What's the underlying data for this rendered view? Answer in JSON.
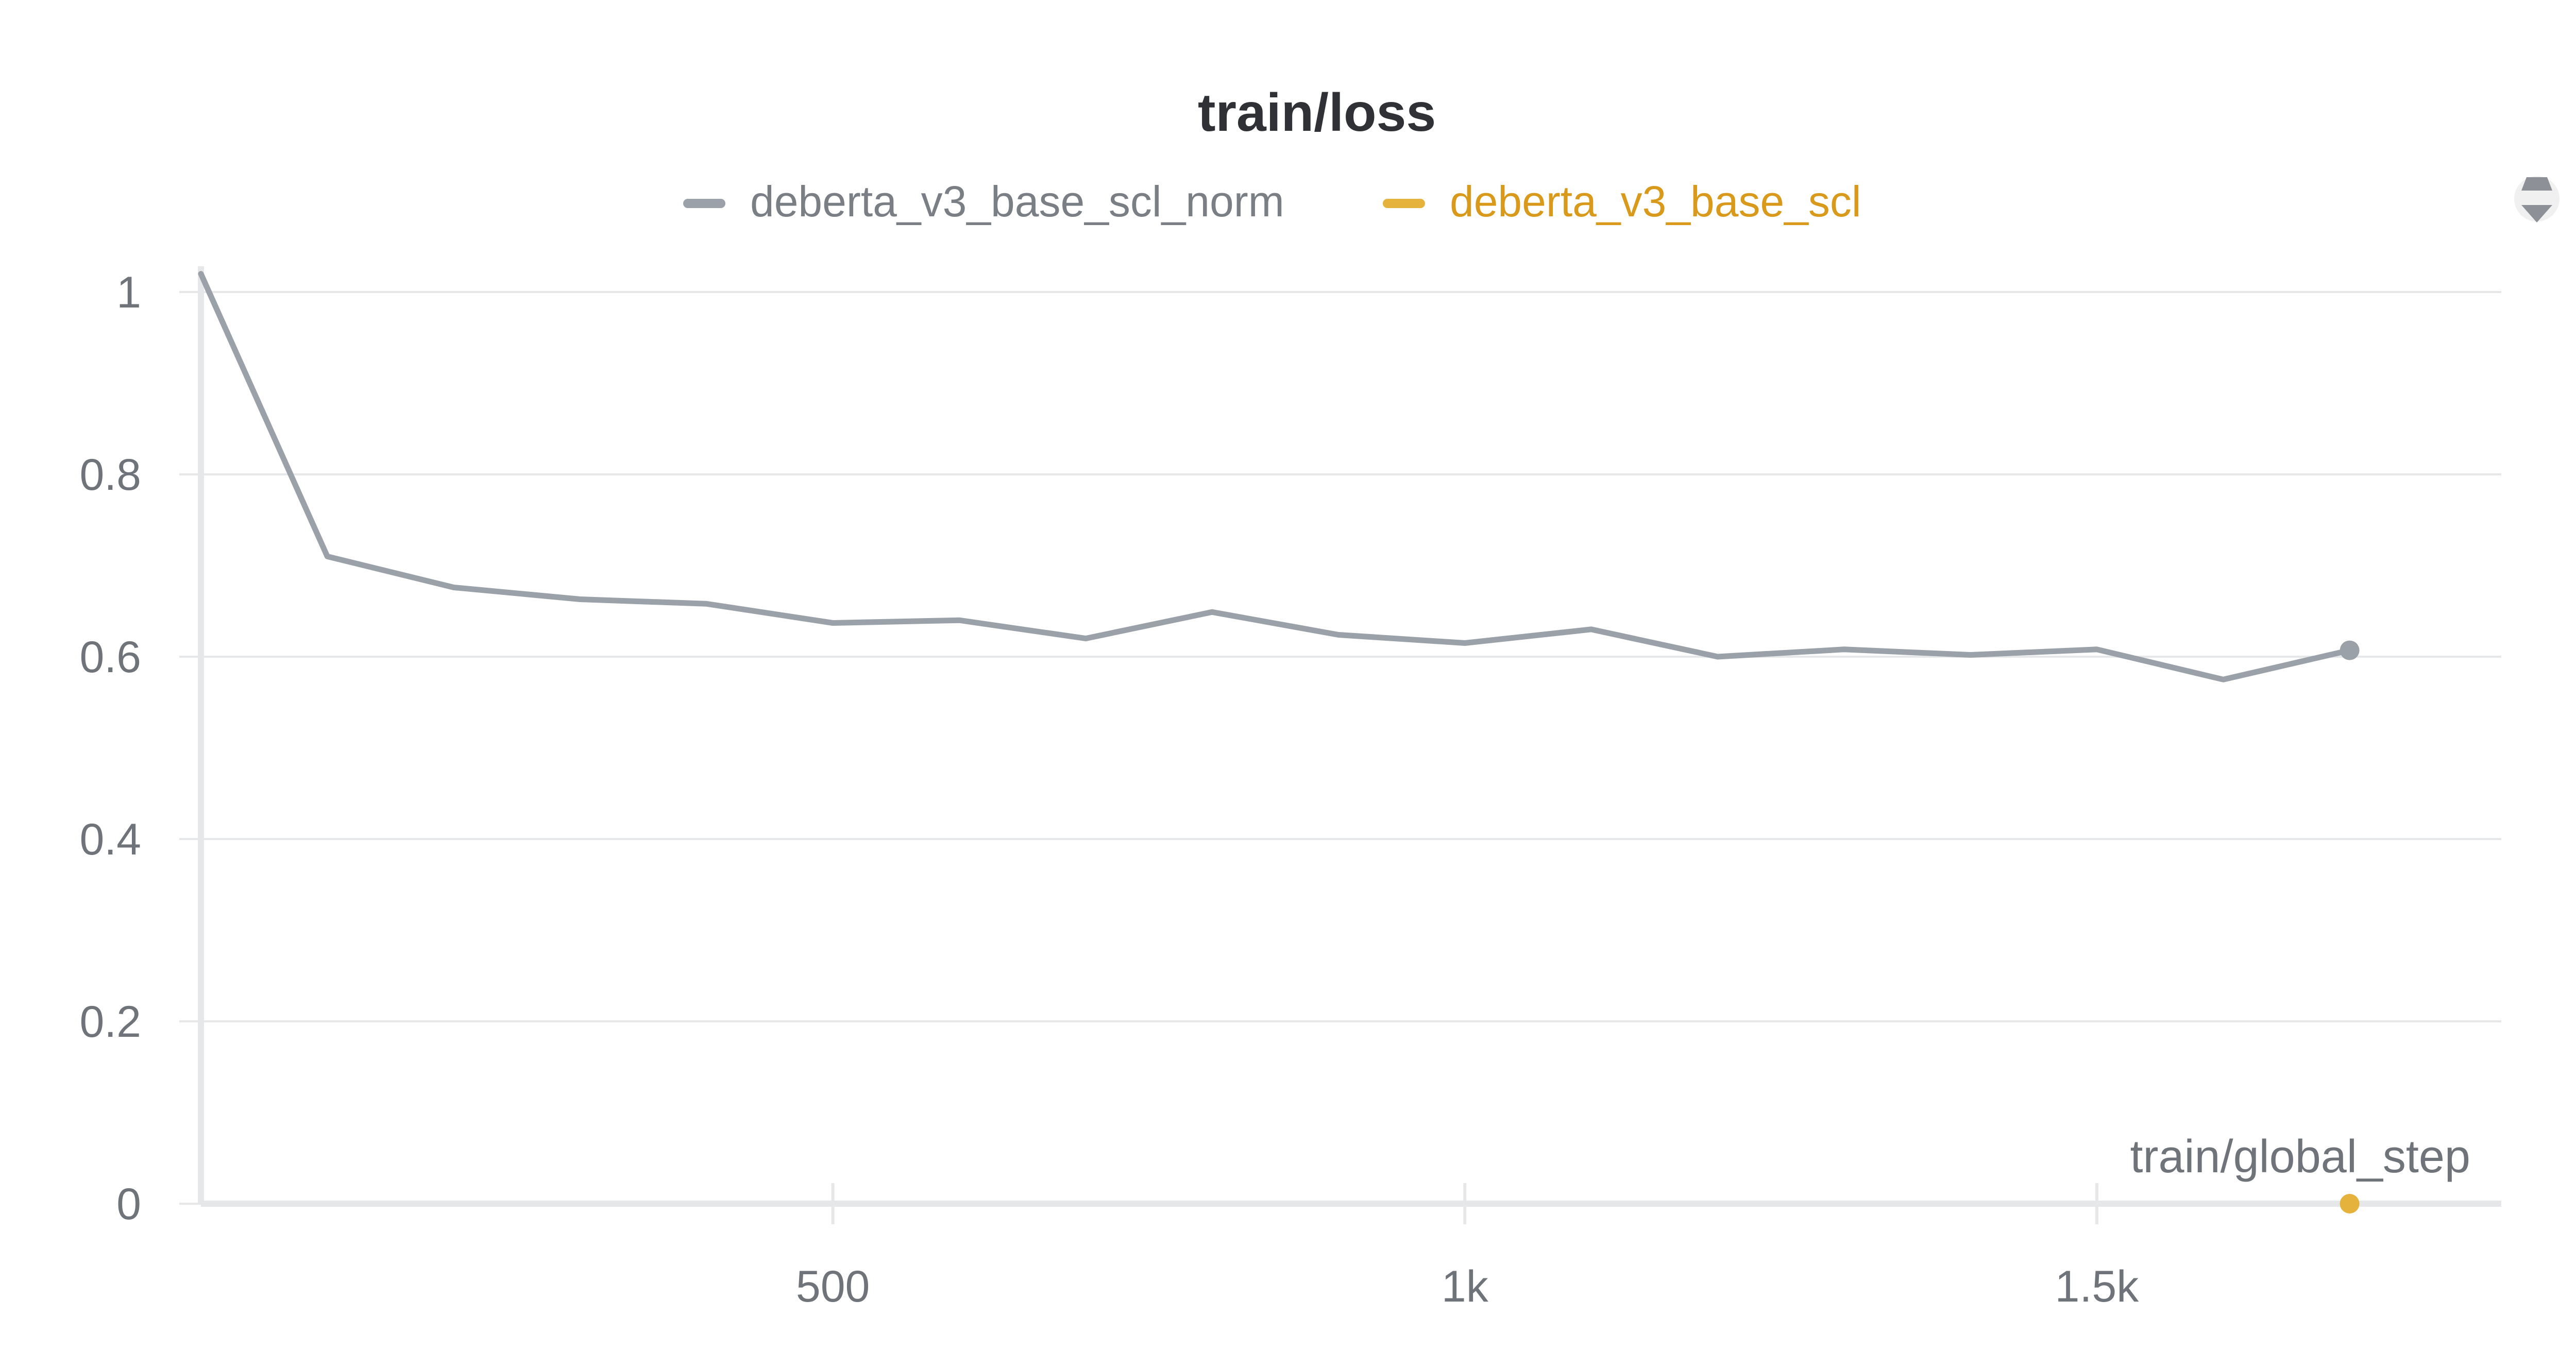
{
  "chart_data": {
    "type": "line",
    "title": "train/loss",
    "xlabel": "train/global_step",
    "ylabel": "",
    "xlim": [
      0,
      1820
    ],
    "ylim": [
      0,
      1
    ],
    "x_ticks": [
      {
        "value": 500,
        "label": "500"
      },
      {
        "value": 1000,
        "label": "1k"
      },
      {
        "value": 1500,
        "label": "1.5k"
      }
    ],
    "y_ticks": [
      {
        "value": 0,
        "label": "0"
      },
      {
        "value": 0.2,
        "label": "0.2"
      },
      {
        "value": 0.4,
        "label": "0.4"
      },
      {
        "value": 0.6,
        "label": "0.6"
      },
      {
        "value": 0.8,
        "label": "0.8"
      },
      {
        "value": 1,
        "label": "1"
      }
    ],
    "grid": true,
    "legend_position": "top-center",
    "series": [
      {
        "name": "deberta_v3_base_scl_norm",
        "color": "#9aa1a8",
        "points": [
          [
            0,
            1.02
          ],
          [
            100,
            0.71
          ],
          [
            200,
            0.676
          ],
          [
            300,
            0.663
          ],
          [
            400,
            0.658
          ],
          [
            500,
            0.637
          ],
          [
            600,
            0.64
          ],
          [
            700,
            0.62
          ],
          [
            800,
            0.649
          ],
          [
            900,
            0.624
          ],
          [
            1000,
            0.615
          ],
          [
            1100,
            0.63
          ],
          [
            1200,
            0.6
          ],
          [
            1300,
            0.608
          ],
          [
            1400,
            0.602
          ],
          [
            1500,
            0.608
          ],
          [
            1600,
            0.575
          ],
          [
            1700,
            0.607
          ]
        ],
        "end_marker": true
      },
      {
        "name": "deberta_v3_base_scl",
        "color": "#e5b33b",
        "points": [
          [
            1700,
            0
          ]
        ],
        "end_marker": true
      }
    ]
  },
  "ui": {
    "legend_toggle_icon": "sort-arrows-icon"
  }
}
